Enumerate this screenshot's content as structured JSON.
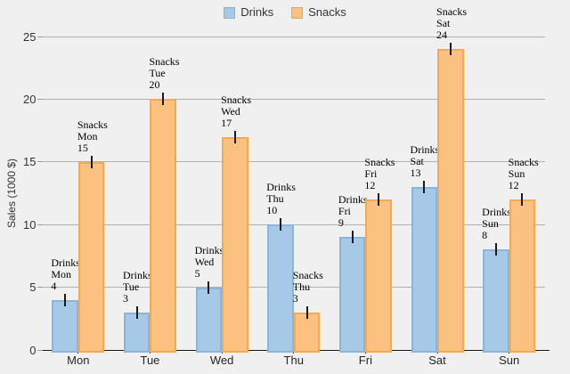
{
  "chart_data": {
    "type": "bar",
    "categories": [
      "Mon",
      "Tue",
      "Wed",
      "Thu",
      "Fri",
      "Sat",
      "Sun"
    ],
    "series": [
      {
        "name": "Drinks",
        "values": [
          4,
          3,
          5,
          10,
          9,
          13,
          8
        ],
        "fill": "#a6c9e8",
        "border": "#8ab4dc"
      },
      {
        "name": "Snacks",
        "values": [
          15,
          20,
          17,
          3,
          12,
          24,
          12
        ],
        "fill": "#fbc180",
        "border": "#f4a952"
      }
    ],
    "title": "",
    "xlabel": "",
    "ylabel": "Sales (1000 $)",
    "ylim": [
      0,
      25
    ],
    "yticks": [
      "0",
      "5",
      "10",
      "15",
      "20",
      "25"
    ],
    "grid": true,
    "legend_position": "top-center",
    "error_bars": {
      "visible": true,
      "approx_magnitude": 0.5
    },
    "bar_labels": [
      {
        "lines": [
          "Drinks",
          "Mon",
          "4"
        ]
      },
      {
        "lines": [
          "Drinks",
          "Tue",
          "3"
        ]
      },
      {
        "lines": [
          "Drinks",
          "Wed",
          "5"
        ]
      },
      {
        "lines": [
          "Drinks",
          "Thu",
          "10"
        ]
      },
      {
        "lines": [
          "Drinks",
          "Fri",
          "9"
        ]
      },
      {
        "lines": [
          "Drinks",
          "Sat",
          "13"
        ]
      },
      {
        "lines": [
          "Drinks",
          "Sun",
          "8"
        ]
      },
      {
        "lines": [
          "Snacks",
          "Mon",
          "15"
        ]
      },
      {
        "lines": [
          "Snacks",
          "Tue",
          "20"
        ]
      },
      {
        "lines": [
          "Snacks",
          "Wed",
          "17"
        ]
      },
      {
        "lines": [
          "Snacks",
          "Thu",
          "3"
        ]
      },
      {
        "lines": [
          "Snacks",
          "Fri",
          "12"
        ]
      },
      {
        "lines": [
          "Snacks",
          "Sat",
          "24"
        ]
      },
      {
        "lines": [
          "Snacks",
          "Sun",
          "12"
        ]
      }
    ]
  },
  "legend": {
    "items": [
      {
        "label": "Drinks",
        "color": "#a6c9e8"
      },
      {
        "label": "Snacks",
        "color": "#fbc180"
      }
    ]
  },
  "colors": {
    "page_background": "#f0f0f0",
    "gridline": "#b0b0b0",
    "axis": "#1a1a1a",
    "tick_text": "#333333",
    "annotation_text": "#000000"
  }
}
